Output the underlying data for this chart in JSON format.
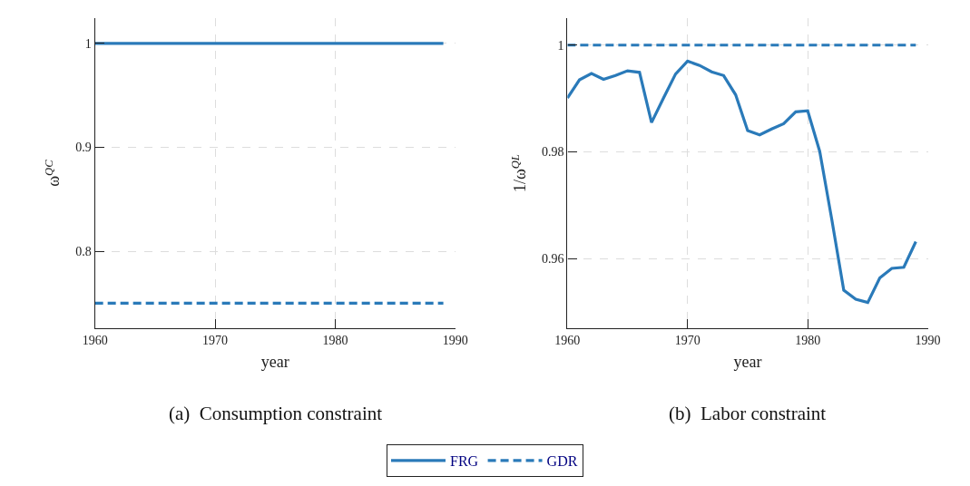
{
  "chart_data": [
    {
      "type": "line",
      "title": "(a)  Consumption constraint",
      "xlabel": "year",
      "ylabel": "ω$^{QC}$",
      "x": [
        1960,
        1989
      ],
      "xlim": [
        1960,
        1990
      ],
      "xticks": [
        1960,
        1970,
        1980,
        1990
      ],
      "ylim": [
        0.726,
        1.024
      ],
      "yticks": [
        0.8,
        0.9,
        1
      ],
      "grid": true,
      "legend": "bottom",
      "series": [
        {
          "name": "FRG",
          "color": "#2a7ab9",
          "line_style": "solid",
          "values": [
            1,
            1
          ]
        },
        {
          "name": "GDR",
          "color": "#2a7ab9",
          "line_style": "dashed",
          "values": [
            0.75,
            0.75
          ]
        }
      ]
    },
    {
      "type": "line",
      "title": "(b)  Labor constraint",
      "xlabel": "year",
      "ylabel": "1/ω$^{QL}$",
      "xlim": [
        1960,
        1990
      ],
      "xticks": [
        1960,
        1970,
        1980,
        1990
      ],
      "ylim": [
        0.947,
        1.005
      ],
      "yticks": [
        0.96,
        0.98,
        1
      ],
      "grid": true,
      "legend": "bottom",
      "series": [
        {
          "name": "FRG",
          "color": "#2a7ab9",
          "line_style": "solid",
          "x": [
            1960,
            1961,
            1962,
            1963,
            1964,
            1965,
            1966,
            1967,
            1968,
            1969,
            1970,
            1971,
            1972,
            1973,
            1974,
            1975,
            1976,
            1977,
            1978,
            1979,
            1980,
            1981,
            1982,
            1983,
            1984,
            1985,
            1986,
            1987,
            1988,
            1989
          ],
          "values": [
            0.9901,
            0.9935,
            0.9947,
            0.9936,
            0.9943,
            0.9952,
            0.9949,
            0.9855,
            0.9901,
            0.9946,
            0.997,
            0.9962,
            0.995,
            0.9943,
            0.9907,
            0.984,
            0.9832,
            0.9843,
            0.9853,
            0.9875,
            0.9877,
            0.9801,
            0.9674,
            0.9541,
            0.9524,
            0.9518,
            0.9564,
            0.9582,
            0.9584,
            0.9632
          ]
        },
        {
          "name": "GDR",
          "color": "#2a7ab9",
          "line_style": "dashed",
          "x": [
            1960,
            1989
          ],
          "values": [
            1,
            1
          ]
        }
      ]
    }
  ]
}
